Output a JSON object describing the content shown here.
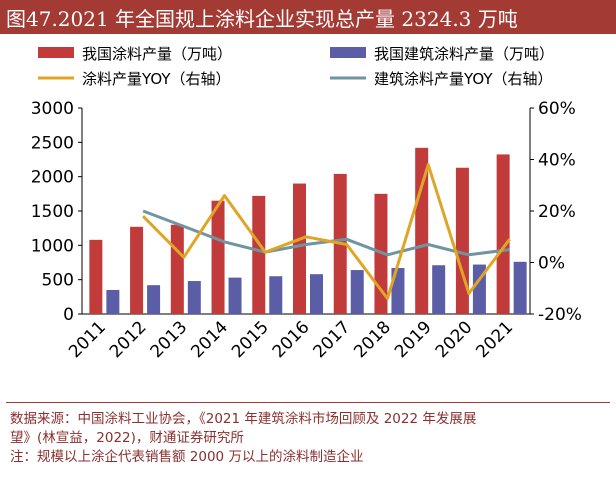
{
  "header": {
    "title": "图47.2021 年全国规上涂料企业实现总产量 2324.3 万吨"
  },
  "colors": {
    "header_bg": "#a33a33",
    "coating_bar": "#c13b3b",
    "arch_bar": "#5b5ea6",
    "coating_line": "#e0a526",
    "arch_line": "#6f95a3"
  },
  "chart_data": {
    "type": "bar",
    "categories": [
      "2011",
      "2012",
      "2013",
      "2014",
      "2015",
      "2016",
      "2017",
      "2018",
      "2019",
      "2020",
      "2021"
    ],
    "series": [
      {
        "name": "我国涂料产量（万吨）",
        "kind": "bar",
        "axis": "left",
        "values": [
          1080,
          1270,
          1300,
          1650,
          1720,
          1900,
          2040,
          1750,
          2420,
          2130,
          2324
        ]
      },
      {
        "name": "我国建筑涂料产量（万吨）",
        "kind": "bar",
        "axis": "left",
        "values": [
          350,
          420,
          480,
          530,
          550,
          580,
          640,
          670,
          710,
          720,
          760
        ]
      },
      {
        "name": "涂料产量YOY（右轴）",
        "kind": "line",
        "axis": "right",
        "values": [
          null,
          18,
          2,
          26,
          4,
          10,
          7,
          -14,
          38,
          -12,
          9
        ]
      },
      {
        "name": "建筑涂料产量YOY（右轴）",
        "kind": "line",
        "axis": "right",
        "values": [
          null,
          20,
          14,
          8,
          4,
          7,
          9,
          3,
          7,
          3,
          5
        ]
      }
    ],
    "y_left": {
      "ylim": [
        0,
        3000
      ],
      "ticks": [
        0,
        500,
        1000,
        1500,
        2000,
        2500,
        3000
      ]
    },
    "y_right": {
      "ylim": [
        -20,
        60
      ],
      "ticks": [
        "-20%",
        "0%",
        "20%",
        "40%",
        "60%"
      ]
    },
    "legend_position": "top",
    "grid": false
  },
  "footer": {
    "source_line1": "数据来源：中国涂料工业协会，《2021 年建筑涂料市场回顾及 2022 年发展展",
    "source_line2": "望》(林宣益，2022)，财通证券研究所",
    "note": "注：规模以上涂企代表销售额 2000 万以上的涂料制造企业"
  }
}
